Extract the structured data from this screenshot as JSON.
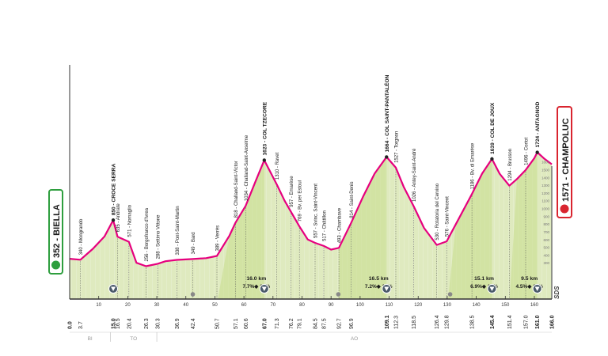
{
  "colors": {
    "fill": "#dfeabf",
    "fill_climb": "#c7dc8c",
    "line": "#e6007e",
    "start_box": "#2e9e3e",
    "finish_box": "#d9252f",
    "marker": "#4a5a6a",
    "axis": "#333333",
    "region": "#9a9a9a"
  },
  "start": {
    "altitude": "352",
    "name": "BIELLA"
  },
  "finish": {
    "altitude": "1571",
    "name": "CHAMPOLUC"
  },
  "sds_label": "SDS",
  "axis_km_ticks": [
    "10",
    "20",
    "30",
    "40",
    "50",
    "60",
    "70",
    "80",
    "90",
    "100",
    "110",
    "120",
    "130",
    "140",
    "150",
    "160"
  ],
  "km_labels": [
    "0.0",
    "3.7",
    "15.0",
    "16.5",
    "20.4",
    "26.3",
    "30.3",
    "36.9",
    "42.4",
    "50.7",
    "57.1",
    "60.6",
    "67.0",
    "71.3",
    "76.2",
    "79.1",
    "84.5",
    "87.5",
    "92.7",
    "96.9",
    "109.1",
    "112.3",
    "118.5",
    "126.4",
    "129.8",
    "138.5",
    "145.4",
    "151.4",
    "157.0",
    "161.0",
    "166.0"
  ],
  "regions": [
    "BI",
    "TO",
    "AO"
  ],
  "places": [
    {
      "alt": "340",
      "name": "Mongrando"
    },
    {
      "alt": "850",
      "name": "CROCE SERRA",
      "major": true
    },
    {
      "alt": "635",
      "name": "Andrate"
    },
    {
      "alt": "571",
      "name": "Nomaglio"
    },
    {
      "alt": "256",
      "name": "Borgofranco d'Ivrea"
    },
    {
      "alt": "288",
      "name": "Settimo Vittone"
    },
    {
      "alt": "338",
      "name": "Pont-Saint-Martin"
    },
    {
      "alt": "349",
      "name": "Bard"
    },
    {
      "alt": "389",
      "name": "Verrès"
    },
    {
      "alt": "818",
      "name": "Challand-Saint-Victor"
    },
    {
      "alt": "1034",
      "name": "Challand-Saint-Anselme"
    },
    {
      "alt": "1623",
      "name": "COL TZECORE",
      "major": true
    },
    {
      "alt": "1310",
      "name": "Ravet"
    },
    {
      "alt": "957",
      "name": "Emarèse"
    },
    {
      "alt": "769",
      "name": "Bv. per Estoul"
    },
    {
      "alt": "557",
      "name": "Svinc. Saint-Vincent"
    },
    {
      "alt": "517",
      "name": "Châtillon"
    },
    {
      "alt": "493",
      "name": "Chambave"
    },
    {
      "alt": "814",
      "name": "Saint-Denis"
    },
    {
      "alt": "1664",
      "name": "COL SAINT-PANTALÉON",
      "major": true
    },
    {
      "alt": "1527",
      "name": "Torgnon"
    },
    {
      "alt": "1026",
      "name": "Antey-Saint-André"
    },
    {
      "alt": "530",
      "name": "Rotatoria del Cervino"
    },
    {
      "alt": "576",
      "name": "Saint-Vincent"
    },
    {
      "alt": "1186",
      "name": "Bv. di Emarèse"
    },
    {
      "alt": "1639",
      "name": "COL DE JOUX",
      "major": true
    },
    {
      "alt": "1294",
      "name": "Brusson"
    },
    {
      "alt": "1496",
      "name": "Cortot"
    },
    {
      "alt": "1724",
      "name": "ANTAGNOD",
      "major": true
    }
  ],
  "climbs": [
    {
      "length": "16.0 km",
      "gradient": "7.7%◆ 15%"
    },
    {
      "length": "16.5 km",
      "gradient": "7.2%◆ 12%"
    },
    {
      "length": "15.1 km",
      "gradient": "6.9%◆ 12%"
    },
    {
      "length": "9.5 km",
      "gradient": "4.5%◆ 11%"
    }
  ],
  "profile": [
    [
      0,
      352
    ],
    [
      3.7,
      340
    ],
    [
      8,
      480
    ],
    [
      12,
      640
    ],
    [
      15,
      850
    ],
    [
      16.5,
      635
    ],
    [
      20.4,
      571
    ],
    [
      23,
      300
    ],
    [
      26.3,
      256
    ],
    [
      30.3,
      288
    ],
    [
      33,
      320
    ],
    [
      36.9,
      338
    ],
    [
      42.4,
      349
    ],
    [
      47,
      360
    ],
    [
      50.7,
      389
    ],
    [
      55,
      650
    ],
    [
      57.1,
      818
    ],
    [
      60.6,
      1034
    ],
    [
      64,
      1350
    ],
    [
      67,
      1623
    ],
    [
      71.3,
      1310
    ],
    [
      74,
      1100
    ],
    [
      76.2,
      957
    ],
    [
      79.1,
      769
    ],
    [
      82,
      600
    ],
    [
      84.5,
      557
    ],
    [
      87.5,
      517
    ],
    [
      90,
      470
    ],
    [
      92.7,
      493
    ],
    [
      96.9,
      814
    ],
    [
      101,
      1150
    ],
    [
      105,
      1450
    ],
    [
      109.1,
      1664
    ],
    [
      112.3,
      1527
    ],
    [
      115,
      1280
    ],
    [
      118.5,
      1026
    ],
    [
      122,
      750
    ],
    [
      126.4,
      530
    ],
    [
      129.8,
      576
    ],
    [
      133,
      800
    ],
    [
      138.5,
      1186
    ],
    [
      142,
      1450
    ],
    [
      145.4,
      1639
    ],
    [
      148,
      1450
    ],
    [
      151.4,
      1294
    ],
    [
      154,
      1380
    ],
    [
      157,
      1496
    ],
    [
      160,
      1650
    ],
    [
      161,
      1724
    ],
    [
      163.5,
      1640
    ],
    [
      166,
      1571
    ]
  ],
  "elevation_scale": [
    "1600",
    "1500",
    "1400",
    "1300",
    "1200",
    "1100",
    "1000",
    "900",
    "800",
    "700",
    "600",
    "500",
    "400",
    "300"
  ]
}
